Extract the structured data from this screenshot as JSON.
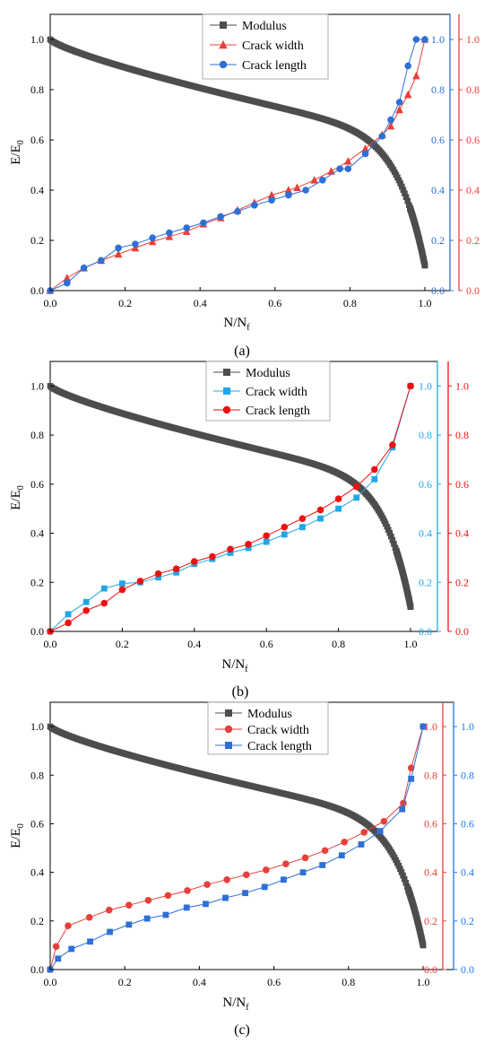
{
  "colors": {
    "modulus": "#4d4d4d",
    "red": "#e8403a",
    "blue": "#2e6fd8",
    "light_blue": "#1fa7e8",
    "bright_red": "#ee1111",
    "axis_blue": "#1e7ae0",
    "axis_red": "#ee3333"
  },
  "chart_data": [
    {
      "type": "line",
      "panel_label": "(a)",
      "xlabel": "N/N",
      "xlabel_sub": "f",
      "ylabel": "E/E",
      "ylabel_sub": "0",
      "xlim": [
        0,
        1.06
      ],
      "ylim": [
        0,
        1.1
      ],
      "xticks": [
        "0.0",
        "0.2",
        "0.4",
        "0.6",
        "0.8",
        "1.0"
      ],
      "yticks": [
        "0.0",
        "0.2",
        "0.4",
        "0.6",
        "0.8",
        "1.0"
      ],
      "right_axes": [
        {
          "color": "blue",
          "ylim": [
            0,
            1.1
          ],
          "ticks": [
            "0.0",
            "0.2",
            "0.4",
            "0.6",
            "0.8",
            "1.0"
          ]
        },
        {
          "color": "red",
          "ylim": [
            0,
            1.1
          ],
          "ticks": [
            "0.0",
            "0.2",
            "0.4",
            "0.6",
            "0.8",
            "1.0"
          ]
        }
      ],
      "legend": "top-center",
      "series": [
        {
          "name": "Modulus",
          "color": "modulus",
          "marker": "square",
          "kind": "modulus",
          "end_y": 0.1
        },
        {
          "name": "Crack width",
          "color": "red",
          "marker": "triangle",
          "x": [
            0,
            0.045,
            0.09,
            0.136,
            0.182,
            0.227,
            0.273,
            0.318,
            0.364,
            0.409,
            0.455,
            0.5,
            0.545,
            0.591,
            0.636,
            0.659,
            0.705,
            0.75,
            0.795,
            0.841,
            0.886,
            0.909,
            0.932,
            0.955,
            0.977,
            1.0
          ],
          "y": [
            0,
            0.05,
            0.09,
            0.12,
            0.145,
            0.17,
            0.195,
            0.215,
            0.235,
            0.265,
            0.29,
            0.32,
            0.35,
            0.38,
            0.4,
            0.41,
            0.44,
            0.475,
            0.515,
            0.565,
            0.62,
            0.655,
            0.72,
            0.78,
            0.855,
            1.0
          ]
        },
        {
          "name": "Crack length",
          "color": "blue",
          "marker": "circle",
          "x": [
            0,
            0.045,
            0.09,
            0.136,
            0.182,
            0.227,
            0.273,
            0.318,
            0.364,
            0.409,
            0.455,
            0.5,
            0.545,
            0.591,
            0.636,
            0.682,
            0.727,
            0.773,
            0.795,
            0.841,
            0.886,
            0.909,
            0.932,
            0.955,
            0.977,
            1.0
          ],
          "y": [
            0,
            0.03,
            0.09,
            0.12,
            0.17,
            0.185,
            0.21,
            0.23,
            0.25,
            0.27,
            0.295,
            0.315,
            0.34,
            0.36,
            0.38,
            0.4,
            0.44,
            0.485,
            0.485,
            0.545,
            0.615,
            0.68,
            0.75,
            0.895,
            1.0,
            1.0
          ]
        }
      ]
    },
    {
      "type": "line",
      "panel_label": "(b)",
      "xlabel": "N/N",
      "xlabel_sub": "f",
      "ylabel": "E/E",
      "ylabel_sub": "0",
      "xlim": [
        0,
        1.06
      ],
      "ylim": [
        0,
        1.1
      ],
      "xticks": [
        "0.0",
        "0.2",
        "0.4",
        "0.6",
        "0.8",
        "1.0"
      ],
      "yticks": [
        "0.0",
        "0.2",
        "0.4",
        "0.6",
        "0.8",
        "1.0"
      ],
      "right_axes": [
        {
          "color": "light_blue",
          "ylim": [
            0,
            1.1
          ],
          "ticks": [
            "0.0",
            "0.2",
            "0.4",
            "0.6",
            "0.8",
            "1.0"
          ]
        },
        {
          "color": "bright_red",
          "ylim": [
            0,
            1.1
          ],
          "ticks": [
            "0.0",
            "0.2",
            "0.4",
            "0.6",
            "0.8",
            "1.0"
          ]
        }
      ],
      "legend": "top-center",
      "series": [
        {
          "name": "Modulus",
          "color": "modulus",
          "marker": "square",
          "kind": "modulus",
          "end_y": 0.1
        },
        {
          "name": "Crack width",
          "color": "light_blue",
          "marker": "square",
          "x": [
            0,
            0.05,
            0.1,
            0.15,
            0.2,
            0.25,
            0.3,
            0.35,
            0.4,
            0.45,
            0.5,
            0.55,
            0.6,
            0.65,
            0.7,
            0.75,
            0.8,
            0.85,
            0.9,
            0.95,
            1.0
          ],
          "y": [
            0,
            0.07,
            0.12,
            0.175,
            0.195,
            0.2,
            0.22,
            0.24,
            0.275,
            0.295,
            0.32,
            0.34,
            0.365,
            0.395,
            0.425,
            0.46,
            0.5,
            0.545,
            0.62,
            0.75,
            1.0
          ]
        },
        {
          "name": "Crack length",
          "color": "bright_red",
          "marker": "circle",
          "x": [
            0,
            0.05,
            0.1,
            0.15,
            0.2,
            0.25,
            0.3,
            0.35,
            0.4,
            0.45,
            0.5,
            0.55,
            0.6,
            0.65,
            0.7,
            0.75,
            0.8,
            0.85,
            0.9,
            0.95,
            1.0
          ],
          "y": [
            0,
            0.035,
            0.085,
            0.115,
            0.17,
            0.205,
            0.235,
            0.255,
            0.285,
            0.305,
            0.335,
            0.355,
            0.39,
            0.425,
            0.46,
            0.495,
            0.54,
            0.59,
            0.66,
            0.76,
            1.0
          ]
        }
      ]
    },
    {
      "type": "line",
      "panel_label": "(c)",
      "xlabel": "N/N",
      "xlabel_sub": "f",
      "ylabel": "E/E",
      "ylabel_sub": "0",
      "xlim": [
        0,
        1.06
      ],
      "ylim": [
        0,
        1.1
      ],
      "xticks": [
        "0.0",
        "0.2",
        "0.4",
        "0.6",
        "0.8",
        "1.0"
      ],
      "yticks": [
        "0.0",
        "0.2",
        "0.4",
        "0.6",
        "0.8",
        "1.0"
      ],
      "right_axes": [
        {
          "color": "red",
          "ylim": [
            0,
            1.1
          ],
          "ticks": [
            "0.0",
            "0.2",
            "0.4",
            "0.6",
            "0.8",
            "1.0"
          ]
        },
        {
          "color": "axis_blue",
          "ylim": [
            0,
            1.1
          ],
          "ticks": [
            "0.0",
            "0.2",
            "0.4",
            "0.6",
            "0.8",
            "1.0"
          ]
        }
      ],
      "legend": "top-center",
      "series": [
        {
          "name": "Modulus",
          "color": "modulus",
          "marker": "square",
          "kind": "modulus",
          "end_y": 0.1
        },
        {
          "name": "Crack width",
          "color": "red",
          "marker": "circle",
          "x": [
            0,
            0.016,
            0.048,
            0.105,
            0.158,
            0.211,
            0.263,
            0.316,
            0.368,
            0.421,
            0.474,
            0.526,
            0.579,
            0.632,
            0.684,
            0.737,
            0.789,
            0.842,
            0.895,
            0.947,
            0.968,
            1.0
          ],
          "y": [
            0,
            0.095,
            0.18,
            0.215,
            0.245,
            0.265,
            0.285,
            0.305,
            0.325,
            0.35,
            0.37,
            0.39,
            0.41,
            0.435,
            0.46,
            0.49,
            0.525,
            0.565,
            0.61,
            0.685,
            0.83,
            1.0
          ]
        },
        {
          "name": "Crack length",
          "color": "blue",
          "marker": "square",
          "x": [
            0,
            0.021,
            0.057,
            0.107,
            0.16,
            0.211,
            0.26,
            0.31,
            0.366,
            0.417,
            0.47,
            0.523,
            0.575,
            0.626,
            0.678,
            0.73,
            0.782,
            0.834,
            0.885,
            0.944,
            0.968,
            1.0
          ],
          "y": [
            0,
            0.045,
            0.085,
            0.115,
            0.155,
            0.185,
            0.21,
            0.225,
            0.255,
            0.27,
            0.295,
            0.315,
            0.34,
            0.37,
            0.4,
            0.43,
            0.47,
            0.515,
            0.57,
            0.66,
            0.785,
            1.0
          ]
        }
      ]
    }
  ]
}
